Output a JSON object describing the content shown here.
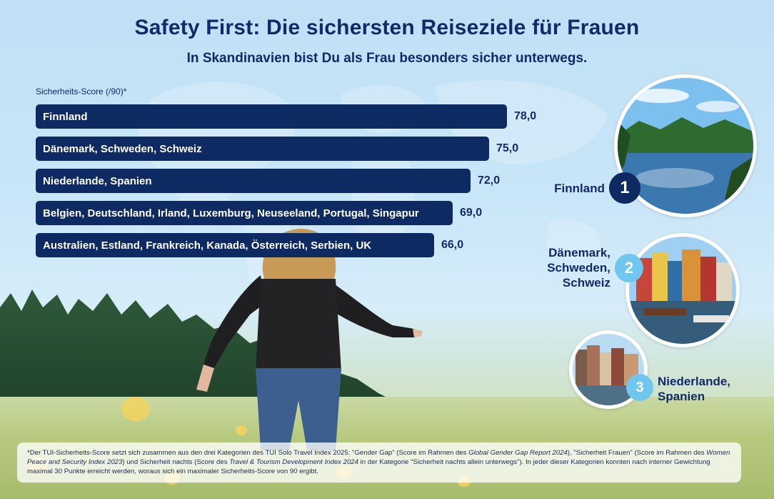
{
  "header": {
    "title": "Safety First: Die sichersten Reiseziele für Frauen",
    "subtitle": "In Skandinavien bist Du als Frau besonders sicher unterwegs."
  },
  "chart_data": {
    "type": "bar",
    "orientation": "horizontal",
    "title": "Safety First: Die sichersten Reiseziele für Frauen",
    "subtitle": "In Skandinavien bist Du als Frau besonders sicher unterwegs.",
    "xlabel": "Sicherheits-Score (/90)*",
    "ylabel": "",
    "xlim": [
      0,
      90
    ],
    "grid": false,
    "categories": [
      "Finnland",
      "Dänemark, Schweden, Schweiz",
      "Niederlande, Spanien",
      "Belgien, Deutschland, Irland, Luxemburg, Neuseeland, Portugal, Singapur",
      "Australien, Estland, Frankreich, Kanada, Österreich, Serbien, UK"
    ],
    "values": [
      78.0,
      75.0,
      72.0,
      69.0,
      66.0
    ],
    "value_labels": [
      "78,0",
      "75,0",
      "72,0",
      "69,0",
      "66,0"
    ],
    "bar_color": "#0d2a63"
  },
  "ranking": [
    {
      "rank": "1",
      "name_lines": [
        "Finnland"
      ],
      "photo": "lake-forest-photo"
    },
    {
      "rank": "2",
      "name_lines": [
        "Dänemark,",
        "Schweden,",
        "Schweiz"
      ],
      "photo": "harbor-houses-photo"
    },
    {
      "rank": "3",
      "name_lines": [
        "Niederlande,",
        "Spanien"
      ],
      "photo": "canal-houses-photo"
    }
  ],
  "footnote": {
    "p1": "*Der TUI-Sicherheits-Score setzt sich zusammen aus den drei Kategorien des TUI Solo Travel Index 2025: \"Gender Gap\" (Score im Rahmen des ",
    "i1": "Global Gender Gap Report 2024",
    "p2": "), \"Sicherheit Frauen\" (Score im Rahmen des ",
    "i2": "Women Peace and Security Index 2023",
    "p3": ") und Sicherheit nachts (Score des ",
    "i3": "Travel & Tourism Development Index 2024",
    "p4": " in der Kategorie \"Sicherheit nachts allein unterwegs\"). In jeder dieser Kategorien konnten nach interner Gewichtung maximal 30 Punkte erreicht werden, woraus sich ein maximaler Sicherheits-Score von 90 ergibt."
  },
  "colors": {
    "navy": "#0d2a63",
    "accent": "#6fc6ee",
    "title": "#13296b"
  }
}
